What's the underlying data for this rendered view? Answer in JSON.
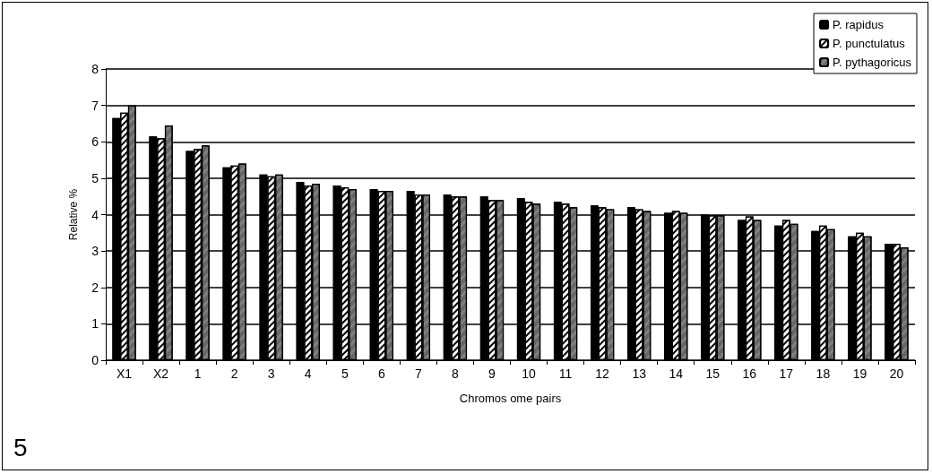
{
  "chart_data": {
    "type": "bar",
    "xlabel": "Chromos ome pairs",
    "ylabel": "Relative %",
    "categories": [
      "X1",
      "X2",
      "1",
      "2",
      "3",
      "4",
      "5",
      "6",
      "7",
      "8",
      "9",
      "10",
      "11",
      "12",
      "13",
      "14",
      "15",
      "16",
      "17",
      "18",
      "19",
      "20"
    ],
    "series": [
      {
        "name": "P. rapidus",
        "color": "#000000",
        "values": [
          6.65,
          6.15,
          5.75,
          5.3,
          5.1,
          4.9,
          4.8,
          4.7,
          4.65,
          4.55,
          4.5,
          4.45,
          4.35,
          4.25,
          4.2,
          4.05,
          4.0,
          3.85,
          3.7,
          3.55,
          3.4,
          3.2
        ]
      },
      {
        "name": "P. punctulatus",
        "color": "#ffffff",
        "values": [
          6.8,
          6.1,
          5.8,
          5.35,
          5.05,
          4.8,
          4.75,
          4.65,
          4.55,
          4.5,
          4.4,
          4.35,
          4.3,
          4.2,
          4.15,
          4.1,
          3.98,
          3.95,
          3.85,
          3.7,
          3.5,
          3.2
        ]
      },
      {
        "name": "P. pythagoricus",
        "color": "#808080",
        "values": [
          7.0,
          6.45,
          5.9,
          5.4,
          5.1,
          4.85,
          4.7,
          4.65,
          4.55,
          4.5,
          4.4,
          4.3,
          4.2,
          4.15,
          4.1,
          4.05,
          3.98,
          3.85,
          3.75,
          3.6,
          3.4,
          3.1
        ]
      }
    ],
    "ylim": [
      0,
      8
    ],
    "yticks": [
      0,
      1,
      2,
      3,
      4,
      5,
      6,
      7,
      8
    ],
    "grid": "y",
    "legend": "top right",
    "annotations": [
      "5"
    ]
  }
}
